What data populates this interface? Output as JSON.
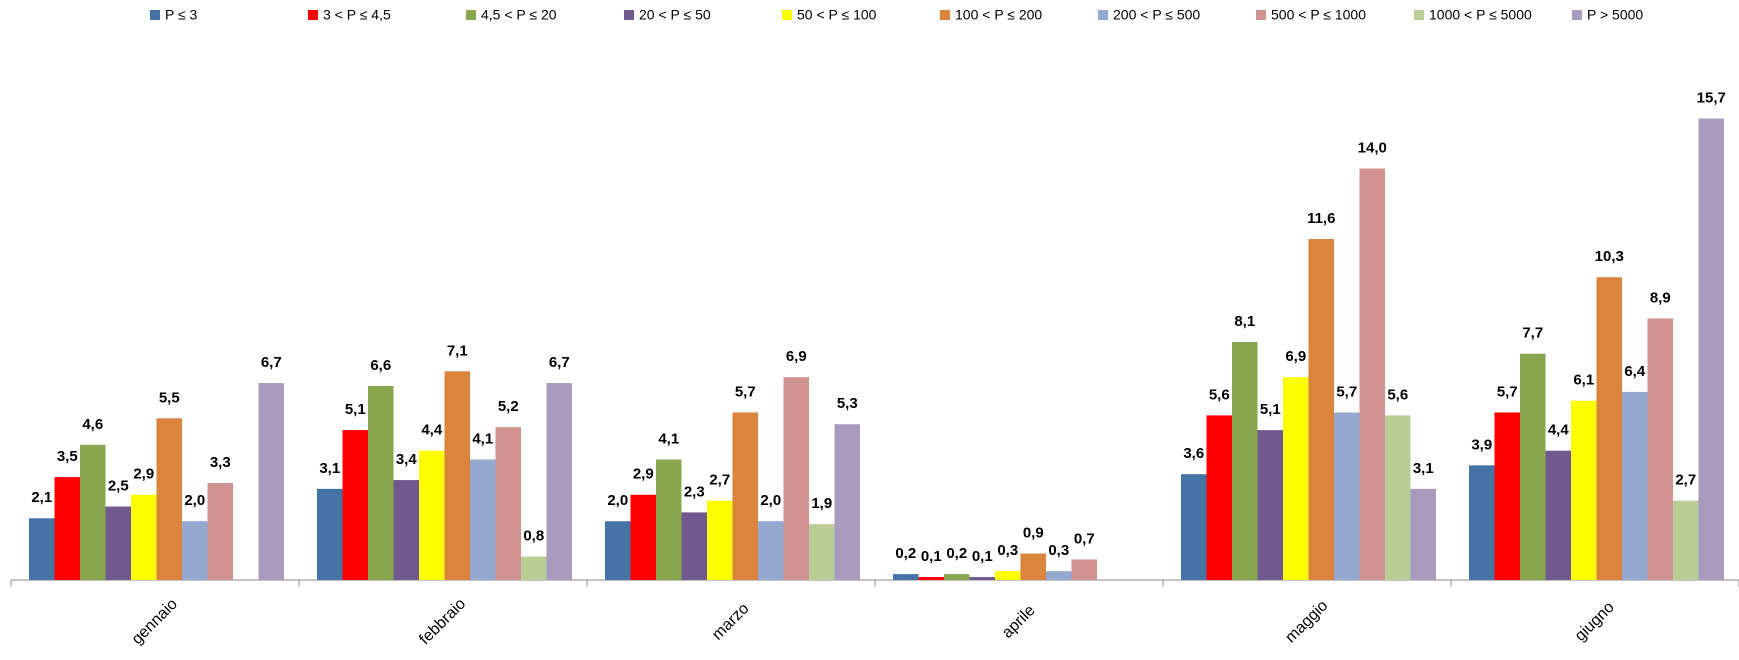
{
  "chart_data": {
    "type": "bar",
    "categories": [
      "gennaio",
      "febbraio",
      "marzo",
      "aprile",
      "maggio",
      "giugno"
    ],
    "series": [
      {
        "name": "P ≤ 3",
        "color": "#4572a7",
        "values": [
          2.1,
          3.1,
          2.0,
          0.2,
          3.6,
          3.9
        ],
        "value_labels": [
          "2,1",
          "3,1",
          "2,0",
          "0,2",
          "3,6",
          "3,9"
        ]
      },
      {
        "name": "3 < P ≤ 4,5",
        "color": "#ff0000",
        "values": [
          3.5,
          5.1,
          2.9,
          0.1,
          5.6,
          5.7
        ],
        "value_labels": [
          "3,5",
          "5,1",
          "2,9",
          "0,1",
          "5,6",
          "5,7"
        ]
      },
      {
        "name": "4,5 < P ≤ 20",
        "color": "#89a54e",
        "values": [
          4.6,
          6.6,
          4.1,
          0.2,
          8.1,
          7.7
        ],
        "value_labels": [
          "4,6",
          "6,6",
          "4,1",
          "0,2",
          "8,1",
          "7,7"
        ]
      },
      {
        "name": "20 < P ≤ 50",
        "color": "#71588f",
        "values": [
          2.5,
          3.4,
          2.3,
          0.1,
          5.1,
          4.4
        ],
        "value_labels": [
          "2,5",
          "3,4",
          "2,3",
          "0,1",
          "5,1",
          "4,4"
        ]
      },
      {
        "name": "50 < P ≤ 100",
        "color": "#ffff00",
        "values": [
          2.9,
          4.4,
          2.7,
          0.3,
          6.9,
          6.1
        ],
        "value_labels": [
          "2,9",
          "4,4",
          "2,7",
          "0,3",
          "6,9",
          "6,1"
        ]
      },
      {
        "name": "100 < P ≤ 200",
        "color": "#db843d",
        "values": [
          5.5,
          7.1,
          5.7,
          0.9,
          11.6,
          10.3
        ],
        "value_labels": [
          "5,5",
          "7,1",
          "5,7",
          "0,9",
          "11,6",
          "10,3"
        ]
      },
      {
        "name": "200 < P ≤ 500",
        "color": "#93a9cf",
        "values": [
          2.0,
          4.1,
          2.0,
          0.3,
          5.7,
          6.4
        ],
        "value_labels": [
          "2,0",
          "4,1",
          "2,0",
          "0,3",
          "5,7",
          "6,4"
        ]
      },
      {
        "name": "500 < P ≤ 1000",
        "color": "#d19392",
        "values": [
          3.3,
          5.2,
          6.9,
          0.7,
          14.0,
          8.9
        ],
        "value_labels": [
          "3,3",
          "5,2",
          "6,9",
          "0,7",
          "14,0",
          "8,9"
        ]
      },
      {
        "name": "1000 < P ≤ 5000",
        "color": "#b9cd96",
        "values": [
          null,
          0.8,
          1.9,
          null,
          5.6,
          2.7
        ],
        "value_labels": [
          null,
          "0,8",
          "1,9",
          null,
          "5,6",
          "2,7"
        ]
      },
      {
        "name": "P > 5000",
        "color": "#a99bbd",
        "values": [
          6.7,
          6.7,
          5.3,
          null,
          3.1,
          15.7
        ],
        "value_labels": [
          "6,7",
          "6,7",
          "5,3",
          null,
          "3,1",
          "15,7"
        ]
      }
    ],
    "ylim": [
      0,
      16.5
    ],
    "legend": "top"
  }
}
